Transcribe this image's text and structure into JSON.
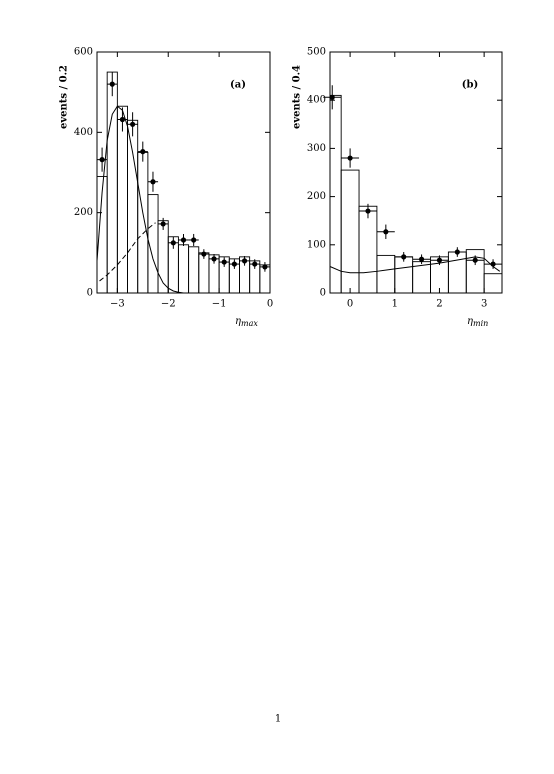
{
  "chart_data": [
    {
      "type": "histogram",
      "label": "(a)",
      "ylabel": "events / 0.2",
      "xlabel_symbol": "η",
      "xlabel_sub": "max",
      "xlim": [
        -3.4,
        0
      ],
      "ylim": [
        0,
        600
      ],
      "xticks": [
        {
          "value": -3,
          "label": "−3"
        },
        {
          "value": -2,
          "label": "−2"
        },
        {
          "value": -1,
          "label": "−1"
        },
        0
      ],
      "yticks": [
        0,
        200,
        400,
        600
      ],
      "bins": [
        -3.4,
        -3.2,
        -3.0,
        -2.8,
        -2.6,
        -2.4,
        -2.2,
        -2.0,
        -1.8,
        -1.6,
        -1.4,
        -1.2,
        -1.0,
        -0.8,
        -0.6,
        -0.4,
        -0.2,
        0
      ],
      "counts": [
        290,
        550,
        465,
        430,
        350,
        245,
        180,
        140,
        120,
        115,
        100,
        95,
        90,
        85,
        90,
        80,
        70
      ],
      "points": {
        "x": [
          -3.3,
          -3.1,
          -2.9,
          -2.7,
          -2.5,
          -2.3,
          -2.1,
          -1.9,
          -1.7,
          -1.5,
          -1.3,
          -1.1,
          -0.9,
          -0.7,
          -0.5,
          -0.3,
          -0.1
        ],
        "values": [
          332,
          520,
          432,
          420,
          352,
          277,
          172,
          125,
          132,
          132,
          97,
          85,
          77,
          72,
          80,
          72,
          65
        ],
        "yerr": [
          30,
          30,
          30,
          30,
          25,
          25,
          15,
          15,
          15,
          15,
          12,
          12,
          12,
          12,
          12,
          12,
          12
        ],
        "xerr": 0.1
      },
      "curves": [
        {
          "style": "solid",
          "x": [
            -3.4,
            -3.3,
            -3.2,
            -3.1,
            -3.0,
            -2.9,
            -2.8,
            -2.7,
            -2.6,
            -2.5,
            -2.4,
            -2.3,
            -2.2,
            -2.1,
            -2.0,
            -1.9,
            -1.8,
            -1.7
          ],
          "values": [
            80,
            250,
            380,
            445,
            465,
            455,
            415,
            350,
            275,
            200,
            135,
            85,
            50,
            25,
            12,
            5,
            2,
            0
          ]
        },
        {
          "style": "dashed",
          "x": [
            -3.35,
            -3.2,
            -3.0,
            -2.8,
            -2.6,
            -2.4,
            -2.25
          ],
          "values": [
            30,
            45,
            70,
            100,
            135,
            160,
            175
          ]
        }
      ]
    },
    {
      "type": "histogram",
      "label": "(b)",
      "ylabel": "events / 0.4",
      "xlabel_symbol": "η",
      "xlabel_sub": "min",
      "xlim": [
        -0.45,
        3.4
      ],
      "ylim": [
        0,
        500
      ],
      "xticks": [
        0,
        1,
        2,
        3
      ],
      "yticks": [
        0,
        100,
        200,
        300,
        400,
        500
      ],
      "bins": [
        -0.45,
        -0.2,
        0.2,
        0.6,
        1.0,
        1.4,
        1.8,
        2.2,
        2.6,
        3.0,
        3.4
      ],
      "counts": [
        410,
        255,
        180,
        78,
        75,
        65,
        75,
        85,
        90,
        40
      ],
      "points": {
        "x": [
          -0.4,
          0,
          0.4,
          0.8,
          1.2,
          1.6,
          2.0,
          2.4,
          2.8,
          3.2
        ],
        "values": [
          406,
          280,
          170,
          127,
          75,
          70,
          68,
          85,
          68,
          60
        ],
        "yerr": [
          25,
          20,
          15,
          15,
          10,
          10,
          10,
          10,
          10,
          10
        ],
        "xerr": 0.2
      },
      "curves": [
        {
          "style": "solid",
          "x": [
            -0.45,
            -0.2,
            0,
            0.3,
            0.6,
            1.0,
            1.5,
            2.0,
            2.5,
            2.8,
            3.0,
            3.2,
            3.35
          ],
          "values": [
            55,
            45,
            42,
            42,
            45,
            50,
            56,
            62,
            70,
            75,
            72,
            55,
            45
          ]
        }
      ]
    }
  ],
  "page_number": "1"
}
